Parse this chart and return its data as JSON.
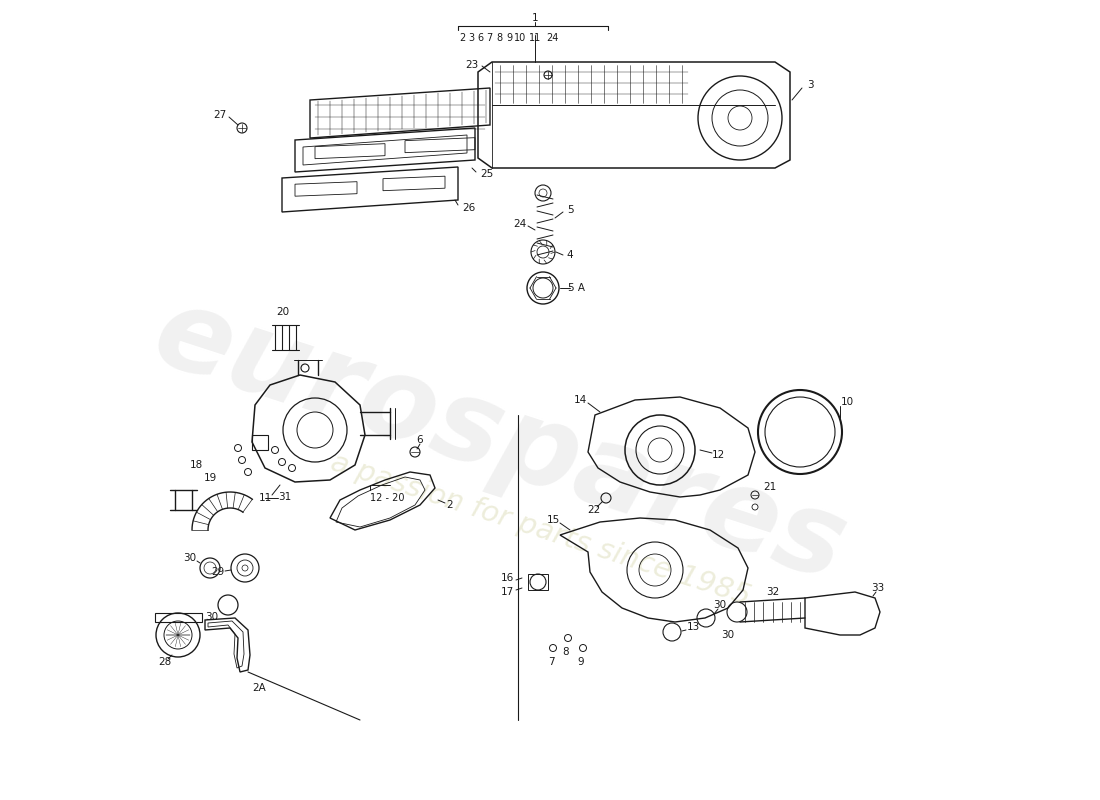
{
  "bg_color": "#ffffff",
  "lc": "#1a1a1a",
  "lw": 1.0,
  "fs": 7.5,
  "wm1": "eurospares",
  "wm2": "a passion for parts since 1985",
  "wm1_color": "#cccccc",
  "wm2_color": "#d8d8b0",
  "fig_w": 11.0,
  "fig_h": 8.0,
  "dpi": 100
}
